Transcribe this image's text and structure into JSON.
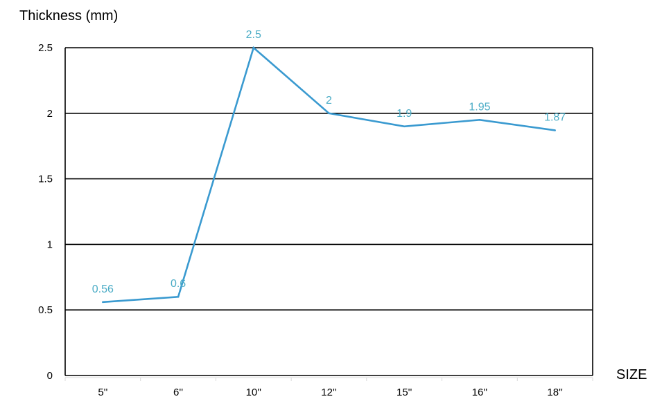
{
  "chart_data": {
    "type": "line",
    "title": "",
    "xlabel": "SIZE",
    "ylabel": "Thickness (mm)",
    "categories": [
      "5''",
      "6''",
      "10''",
      "12''",
      "15''",
      "16''",
      "18''"
    ],
    "series": [
      {
        "values": [
          0.56,
          0.6,
          2.5,
          2,
          1.9,
          1.95,
          1.87
        ],
        "data_labels": [
          "0.56",
          "0.6",
          "2.5",
          "2",
          "1.9",
          "1.95",
          "1.87"
        ],
        "color": "#3a9ad0",
        "label_color": "#4bacc6"
      }
    ],
    "ylim": [
      0,
      2.5
    ],
    "yticks": [
      0,
      0.5,
      1,
      1.5,
      2,
      2.5
    ],
    "ytick_labels": [
      "0",
      "0.5",
      "1",
      "1.5",
      "2",
      "2.5"
    ],
    "grid": true,
    "legend": "none"
  }
}
